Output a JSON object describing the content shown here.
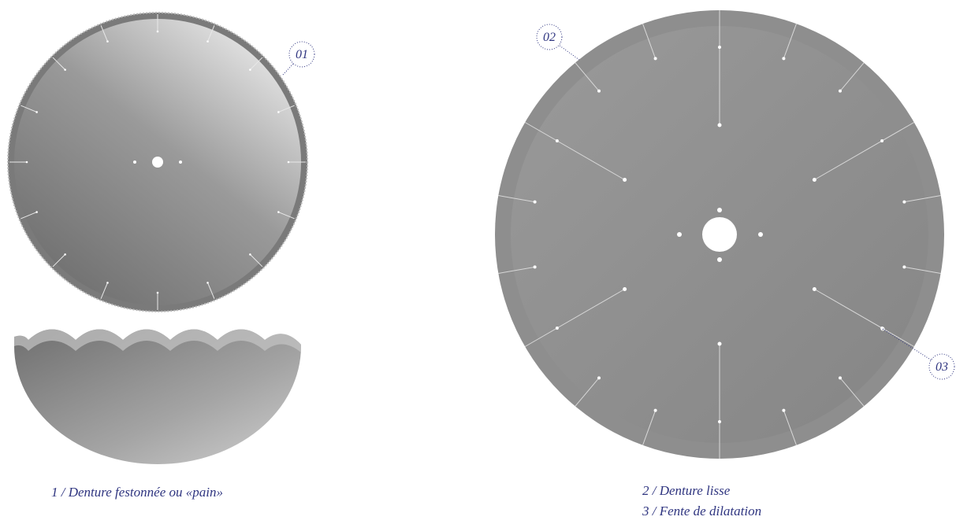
{
  "callouts": {
    "c1": "01",
    "c2": "02",
    "c3": "03"
  },
  "captions": {
    "left": "1 / Denture festonnée ou «pain»",
    "right_1": "2 / Denture lisse",
    "right_2": "3 / Fente de dilatation"
  }
}
